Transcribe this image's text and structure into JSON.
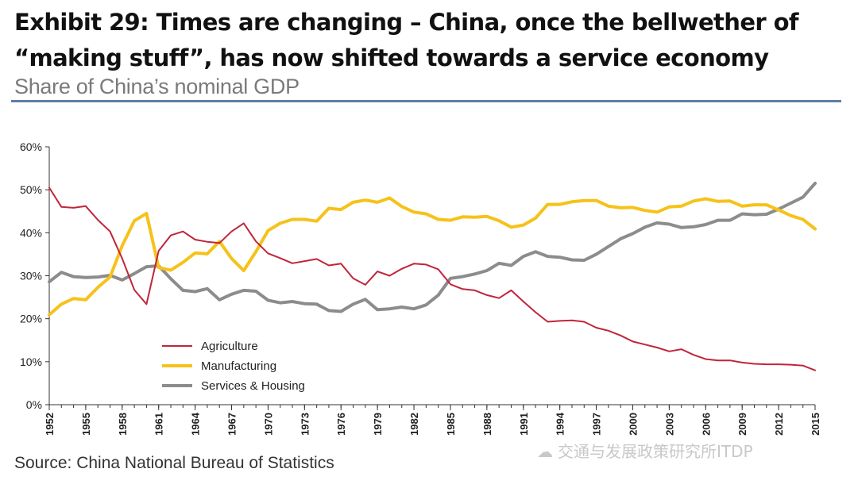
{
  "header": {
    "title": "Exhibit 29: Times are changing – China, once the bellwether of “making stuff”, has now shifted towards a service economy",
    "subtitle": "Share of China’s nominal GDP"
  },
  "footer": {
    "source": "Source: China National Bureau of Statistics",
    "watermark": "交通与发展政策研究所ITDP",
    "watermark_icon": "wechat-icon"
  },
  "colors": {
    "agriculture": "#c0253a",
    "manufacturing": "#f6c21a",
    "services": "#8c8c8c",
    "rule": "#5e7fa8"
  },
  "chart_data": {
    "type": "line",
    "title": "Share of China’s nominal GDP",
    "xlabel": "",
    "ylabel": "",
    "ylim": [
      0,
      60
    ],
    "yticks": [
      "0%",
      "10%",
      "20%",
      "30%",
      "40%",
      "50%",
      "60%"
    ],
    "xlim": [
      1952,
      2015
    ],
    "xticks": [
      "1952",
      "1955",
      "1958",
      "1961",
      "1964",
      "1967",
      "1970",
      "1973",
      "1976",
      "1979",
      "1982",
      "1985",
      "1988",
      "1991",
      "1994",
      "1997",
      "2000",
      "2003",
      "2006",
      "2009",
      "2012",
      "2015"
    ],
    "legend_position": "bottom-left",
    "x": [
      1952,
      1953,
      1954,
      1955,
      1956,
      1957,
      1958,
      1959,
      1960,
      1961,
      1962,
      1963,
      1964,
      1965,
      1966,
      1967,
      1968,
      1969,
      1970,
      1971,
      1972,
      1973,
      1974,
      1975,
      1976,
      1977,
      1978,
      1979,
      1980,
      1981,
      1982,
      1983,
      1984,
      1985,
      1986,
      1987,
      1988,
      1989,
      1990,
      1991,
      1992,
      1993,
      1994,
      1995,
      1996,
      1997,
      1998,
      1999,
      2000,
      2001,
      2002,
      2003,
      2004,
      2005,
      2006,
      2007,
      2008,
      2009,
      2010,
      2011,
      2012,
      2013,
      2014,
      2015
    ],
    "series": [
      {
        "name": "Agriculture",
        "values": [
          50.5,
          46,
          45.8,
          46.2,
          43,
          40.3,
          34,
          26.7,
          23.4,
          35.8,
          39.4,
          40.3,
          38.4,
          37.9,
          37.6,
          40.3,
          42.2,
          38,
          35.2,
          34.1,
          32.9,
          33.4,
          33.9,
          32.4,
          32.8,
          29.4,
          27.9,
          31,
          30,
          31.6,
          32.8,
          32.6,
          31.5,
          28,
          26.9,
          26.6,
          25.5,
          24.8,
          26.6,
          24,
          21.5,
          19.3,
          19.5,
          19.6,
          19.3,
          17.9,
          17.2,
          16.1,
          14.7,
          14,
          13.3,
          12.4,
          12.9,
          11.6,
          10.6,
          10.3,
          10.3,
          9.8,
          9.5,
          9.4,
          9.4,
          9.3,
          9.1,
          8.0
        ]
      },
      {
        "name": "Manufacturing",
        "values": [
          20.9,
          23.4,
          24.7,
          24.4,
          27.3,
          29.7,
          37,
          42.8,
          44.5,
          31.9,
          31.3,
          33.1,
          35.3,
          35.1,
          38,
          34,
          31.2,
          35.6,
          40.5,
          42.2,
          43.1,
          43.1,
          42.7,
          45.7,
          45.4,
          47.1,
          47.6,
          47.1,
          48.1,
          46.1,
          44.8,
          44.4,
          43.1,
          42.9,
          43.7,
          43.6,
          43.8,
          42.8,
          41.3,
          41.8,
          43.4,
          46.6,
          46.6,
          47.2,
          47.5,
          47.5,
          46.2,
          45.8,
          45.9,
          45.2,
          44.8,
          46,
          46.2,
          47.4,
          47.9,
          47.3,
          47.4,
          46.2,
          46.5,
          46.5,
          45.3,
          44,
          43.1,
          40.9
        ]
      },
      {
        "name": "Services & Housing",
        "values": [
          28.6,
          30.8,
          29.8,
          29.6,
          29.7,
          30.1,
          29,
          30.5,
          32.1,
          32.3,
          29.3,
          26.6,
          26.3,
          27,
          24.4,
          25.7,
          26.6,
          26.4,
          24.3,
          23.7,
          24,
          23.5,
          23.4,
          21.9,
          21.7,
          23.4,
          24.5,
          22.1,
          22.3,
          22.7,
          22.3,
          23.2,
          25.5,
          29.4,
          29.8,
          30.4,
          31.2,
          32.9,
          32.4,
          34.5,
          35.6,
          34.5,
          34.3,
          33.7,
          33.6,
          35,
          36.8,
          38.6,
          39.8,
          41.3,
          42.3,
          42,
          41.2,
          41.4,
          41.9,
          42.9,
          42.9,
          44.4,
          44.2,
          44.3,
          45.5,
          46.9,
          48.3,
          51.5
        ]
      }
    ]
  }
}
